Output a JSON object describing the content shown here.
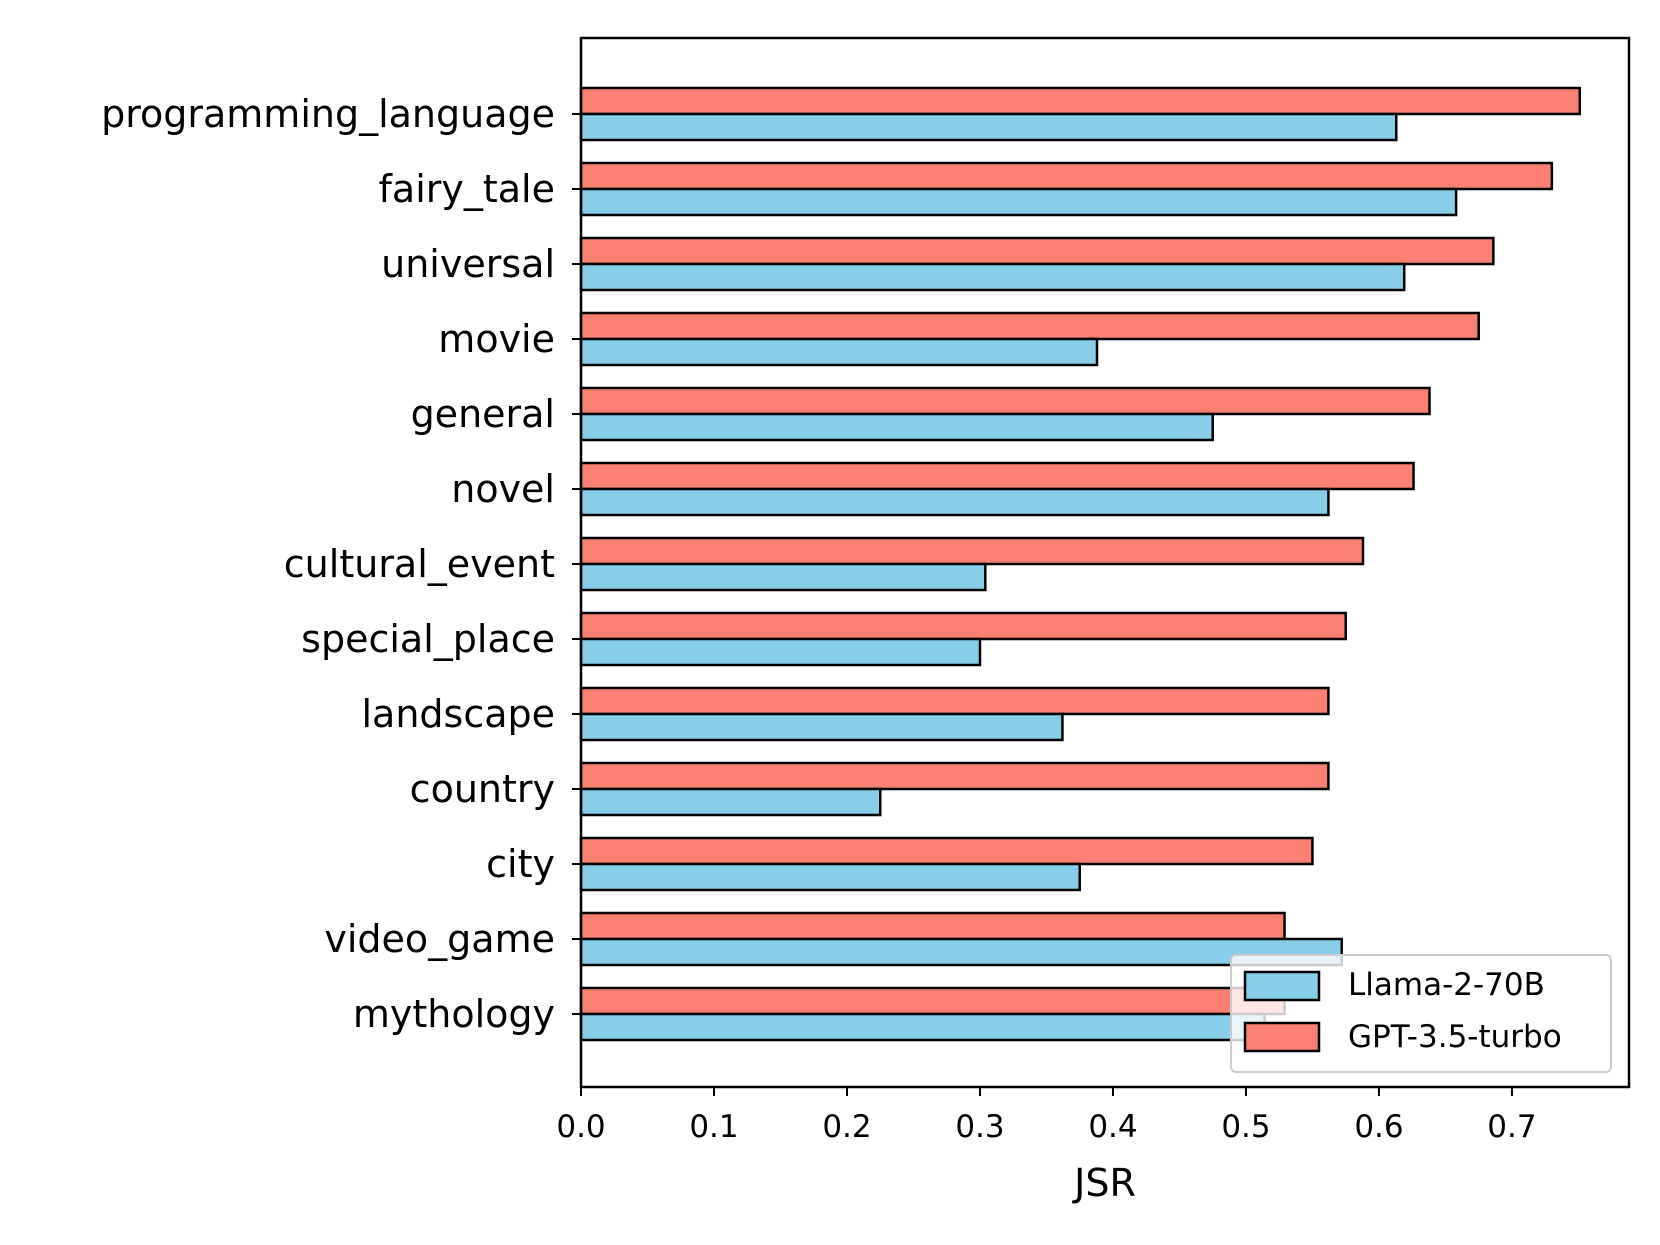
{
  "chart_data": {
    "type": "bar",
    "orientation": "horizontal",
    "title": "",
    "xlabel": "JSR",
    "ylabel": "",
    "xlim": [
      0,
      0.788
    ],
    "xticks": [
      "0.0",
      "0.1",
      "0.2",
      "0.3",
      "0.4",
      "0.5",
      "0.6",
      "0.7"
    ],
    "grid": false,
    "legend_position": "lower-right",
    "categories": [
      "programming_language",
      "fairy_tale",
      "universal",
      "movie",
      "general",
      "novel",
      "cultural_event",
      "special_place",
      "landscape",
      "country",
      "city",
      "video_game",
      "mythology"
    ],
    "series": [
      {
        "name": "Llama-2-70B",
        "color": "#87CEEB",
        "values": [
          0.613,
          0.658,
          0.619,
          0.388,
          0.475,
          0.562,
          0.304,
          0.3,
          0.362,
          0.225,
          0.375,
          0.572,
          0.514
        ]
      },
      {
        "name": "GPT-3.5-turbo",
        "color": "#FA8072",
        "values": [
          0.751,
          0.73,
          0.686,
          0.675,
          0.638,
          0.626,
          0.588,
          0.575,
          0.562,
          0.562,
          0.55,
          0.529,
          0.529
        ]
      }
    ]
  }
}
